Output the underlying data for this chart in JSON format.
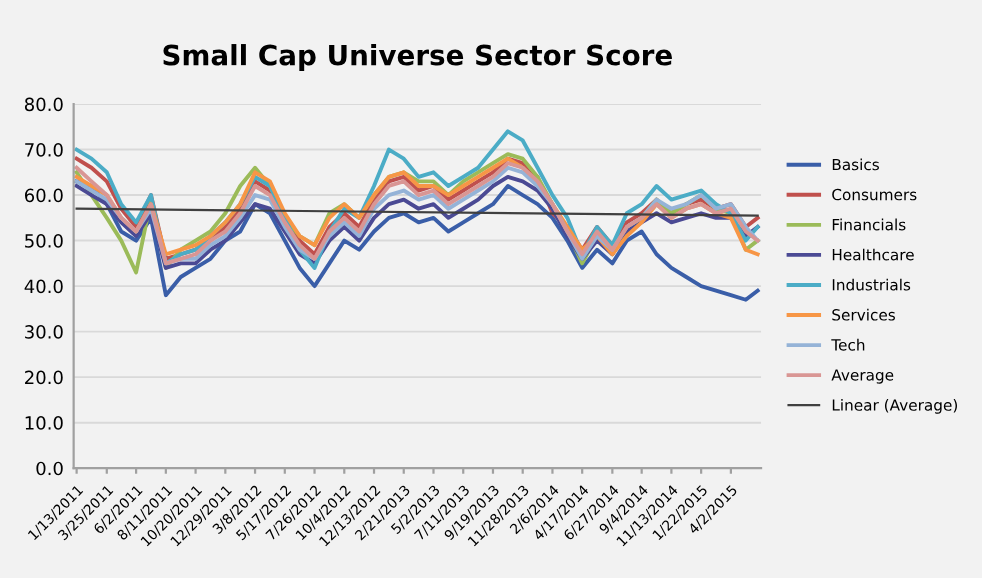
{
  "chart_data": {
    "type": "line",
    "title": "Small Cap Universe Sector Score",
    "x": [
      "2011-01-13",
      "2011-02-17",
      "2011-03-25",
      "2011-04-28",
      "2011-06-02",
      "2011-07-07",
      "2011-08-11",
      "2011-09-15",
      "2011-10-20",
      "2011-11-24",
      "2011-12-29",
      "2012-02-02",
      "2012-03-08",
      "2012-04-12",
      "2012-05-17",
      "2012-06-21",
      "2012-07-26",
      "2012-08-30",
      "2012-10-04",
      "2012-11-08",
      "2012-12-13",
      "2013-01-17",
      "2013-02-21",
      "2013-03-28",
      "2013-05-02",
      "2013-06-06",
      "2013-07-11",
      "2013-08-15",
      "2013-09-19",
      "2013-10-24",
      "2013-11-28",
      "2014-01-02",
      "2014-02-06",
      "2014-03-13",
      "2014-04-17",
      "2014-05-22",
      "2014-06-27",
      "2014-07-31",
      "2014-09-04",
      "2014-10-09",
      "2014-11-13",
      "2014-12-18",
      "2015-01-22",
      "2015-02-26",
      "2015-04-02",
      "2015-05-07",
      "2015-06-04"
    ],
    "series": [
      {
        "name": "Basics",
        "color": "#3a5ea8",
        "values": [
          63,
          62,
          58,
          52,
          50,
          55,
          38,
          42,
          44,
          46,
          50,
          52,
          58,
          56,
          50,
          44,
          40,
          45,
          50,
          48,
          52,
          55,
          56,
          54,
          55,
          52,
          54,
          56,
          58,
          62,
          60,
          58,
          55,
          50,
          44,
          48,
          45,
          50,
          52,
          47,
          44,
          42,
          40,
          39,
          38,
          37,
          39
        ]
      },
      {
        "name": "Consumers",
        "color": "#c0504d",
        "values": [
          68,
          66,
          63,
          57,
          53,
          60,
          46,
          47,
          48,
          50,
          53,
          57,
          63,
          61,
          55,
          50,
          47,
          53,
          56,
          53,
          59,
          63,
          64,
          61,
          62,
          59,
          61,
          63,
          65,
          68,
          67,
          64,
          56,
          53,
          48,
          53,
          49,
          54,
          56,
          59,
          56,
          58,
          59,
          57,
          58,
          53,
          55
        ]
      },
      {
        "name": "Financials",
        "color": "#9bbb59",
        "values": [
          65,
          60,
          55,
          50,
          43,
          59,
          44,
          48,
          50,
          52,
          56,
          62,
          66,
          62,
          55,
          51,
          49,
          56,
          58,
          55,
          60,
          64,
          65,
          63,
          63,
          60,
          63,
          65,
          67,
          69,
          68,
          64,
          58,
          52,
          45,
          51,
          47,
          52,
          55,
          59,
          56,
          58,
          60,
          57,
          56,
          48,
          50
        ]
      },
      {
        "name": "Healthcare",
        "color": "#4b4a94",
        "values": [
          62,
          60,
          58,
          54,
          51,
          56,
          44,
          45,
          45,
          48,
          50,
          54,
          58,
          57,
          52,
          47,
          45,
          50,
          53,
          50,
          55,
          58,
          59,
          57,
          58,
          55,
          57,
          59,
          62,
          64,
          63,
          61,
          57,
          51,
          46,
          50,
          47,
          52,
          54,
          56,
          54,
          55,
          56,
          55,
          55,
          51,
          53
        ]
      },
      {
        "name": "Industrials",
        "color": "#4bacc6",
        "values": [
          70,
          68,
          65,
          58,
          54,
          60,
          45,
          47,
          48,
          51,
          54,
          58,
          64,
          62,
          55,
          48,
          44,
          52,
          57,
          55,
          62,
          70,
          68,
          64,
          65,
          62,
          64,
          66,
          70,
          74,
          72,
          66,
          60,
          55,
          47,
          53,
          49,
          56,
          58,
          62,
          59,
          60,
          61,
          58,
          56,
          50,
          53
        ]
      },
      {
        "name": "Services",
        "color": "#f79646",
        "values": [
          64,
          62,
          60,
          55,
          52,
          58,
          47,
          48,
          49,
          51,
          54,
          58,
          65,
          63,
          56,
          51,
          49,
          55,
          58,
          55,
          60,
          64,
          65,
          62,
          62,
          60,
          62,
          64,
          66,
          68,
          66,
          63,
          58,
          53,
          48,
          51,
          47,
          51,
          54,
          58,
          55,
          57,
          58,
          56,
          55,
          48,
          47
        ]
      },
      {
        "name": "Tech",
        "color": "#95b3d7",
        "values": [
          63,
          61,
          59,
          55,
          52,
          57,
          45,
          46,
          46,
          49,
          51,
          55,
          60,
          59,
          53,
          48,
          46,
          51,
          54,
          51,
          57,
          60,
          61,
          59,
          60,
          57,
          59,
          61,
          63,
          66,
          65,
          62,
          58,
          52,
          46,
          51,
          48,
          53,
          55,
          59,
          57,
          58,
          60,
          57,
          58,
          53,
          50
        ]
      },
      {
        "name": "Average",
        "color": "#d99694",
        "values": [
          66,
          63,
          60,
          55,
          52,
          58,
          45,
          46,
          47,
          50,
          52,
          56,
          62,
          60,
          54,
          49,
          46,
          52,
          55,
          52,
          58,
          62,
          63,
          60,
          61,
          58,
          60,
          62,
          64,
          67,
          66,
          63,
          58,
          52,
          47,
          52,
          48,
          53,
          55,
          58,
          55,
          57,
          58,
          56,
          57,
          52,
          50
        ]
      },
      {
        "name": "Linear (Average)",
        "color": "#404040",
        "x": [
          "2011-01-13",
          "2015-06-04"
        ],
        "values": [
          57,
          55.5
        ]
      }
    ],
    "xlim": [
      "2011-01-06",
      "2015-06-12"
    ],
    "xticks": [
      {
        "value": "2011-01-13",
        "label": "1/13/2011"
      },
      {
        "value": "2011-03-25",
        "label": "3/25/2011"
      },
      {
        "value": "2011-06-02",
        "label": "6/2/2011"
      },
      {
        "value": "2011-08-11",
        "label": "8/11/2011"
      },
      {
        "value": "2011-10-20",
        "label": "10/20/2011"
      },
      {
        "value": "2011-12-29",
        "label": "12/29/2011"
      },
      {
        "value": "2012-03-08",
        "label": "3/8/2012"
      },
      {
        "value": "2012-05-17",
        "label": "5/17/2012"
      },
      {
        "value": "2012-07-26",
        "label": "7/26/2012"
      },
      {
        "value": "2012-10-04",
        "label": "10/4/2012"
      },
      {
        "value": "2012-12-13",
        "label": "12/13/2012"
      },
      {
        "value": "2013-02-21",
        "label": "2/21/2013"
      },
      {
        "value": "2013-05-02",
        "label": "5/2/2013"
      },
      {
        "value": "2013-07-11",
        "label": "7/11/2013"
      },
      {
        "value": "2013-09-19",
        "label": "9/19/2013"
      },
      {
        "value": "2013-11-28",
        "label": "11/28/2013"
      },
      {
        "value": "2014-02-06",
        "label": "2/6/2014"
      },
      {
        "value": "2014-04-17",
        "label": "4/17/2014"
      },
      {
        "value": "2014-06-27",
        "label": "6/27/2014"
      },
      {
        "value": "2014-09-04",
        "label": "9/4/2014"
      },
      {
        "value": "2014-11-13",
        "label": "11/13/2014"
      },
      {
        "value": "2015-01-22",
        "label": "1/22/2015"
      },
      {
        "value": "2015-04-02",
        "label": "4/2/2015"
      }
    ],
    "ylim": [
      0,
      80
    ],
    "yticks": [
      {
        "value": 0,
        "label": "0.0"
      },
      {
        "value": 10,
        "label": "10.0"
      },
      {
        "value": 20,
        "label": "20.0"
      },
      {
        "value": 30,
        "label": "30.0"
      },
      {
        "value": 40,
        "label": "40.0"
      },
      {
        "value": 50,
        "label": "50.0"
      },
      {
        "value": 60,
        "label": "60.0"
      },
      {
        "value": 70,
        "label": "70.0"
      },
      {
        "value": 80,
        "label": "80.0"
      }
    ],
    "grid": "y",
    "legend": "right",
    "marker": "none",
    "line_style": "solid"
  }
}
